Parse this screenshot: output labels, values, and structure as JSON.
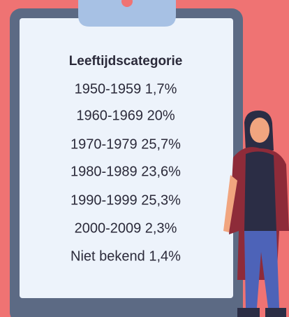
{
  "card": {
    "title": "Leeftijdscategorie",
    "rows": [
      "1950-1959 1,7%",
      "1960-1969 20%",
      "1970-1979 25,7%",
      "1980-1989 23,6%",
      "1990-1999 25,3%",
      "2000-2009 2,3%",
      "Niet bekend 1,4%"
    ]
  }
}
